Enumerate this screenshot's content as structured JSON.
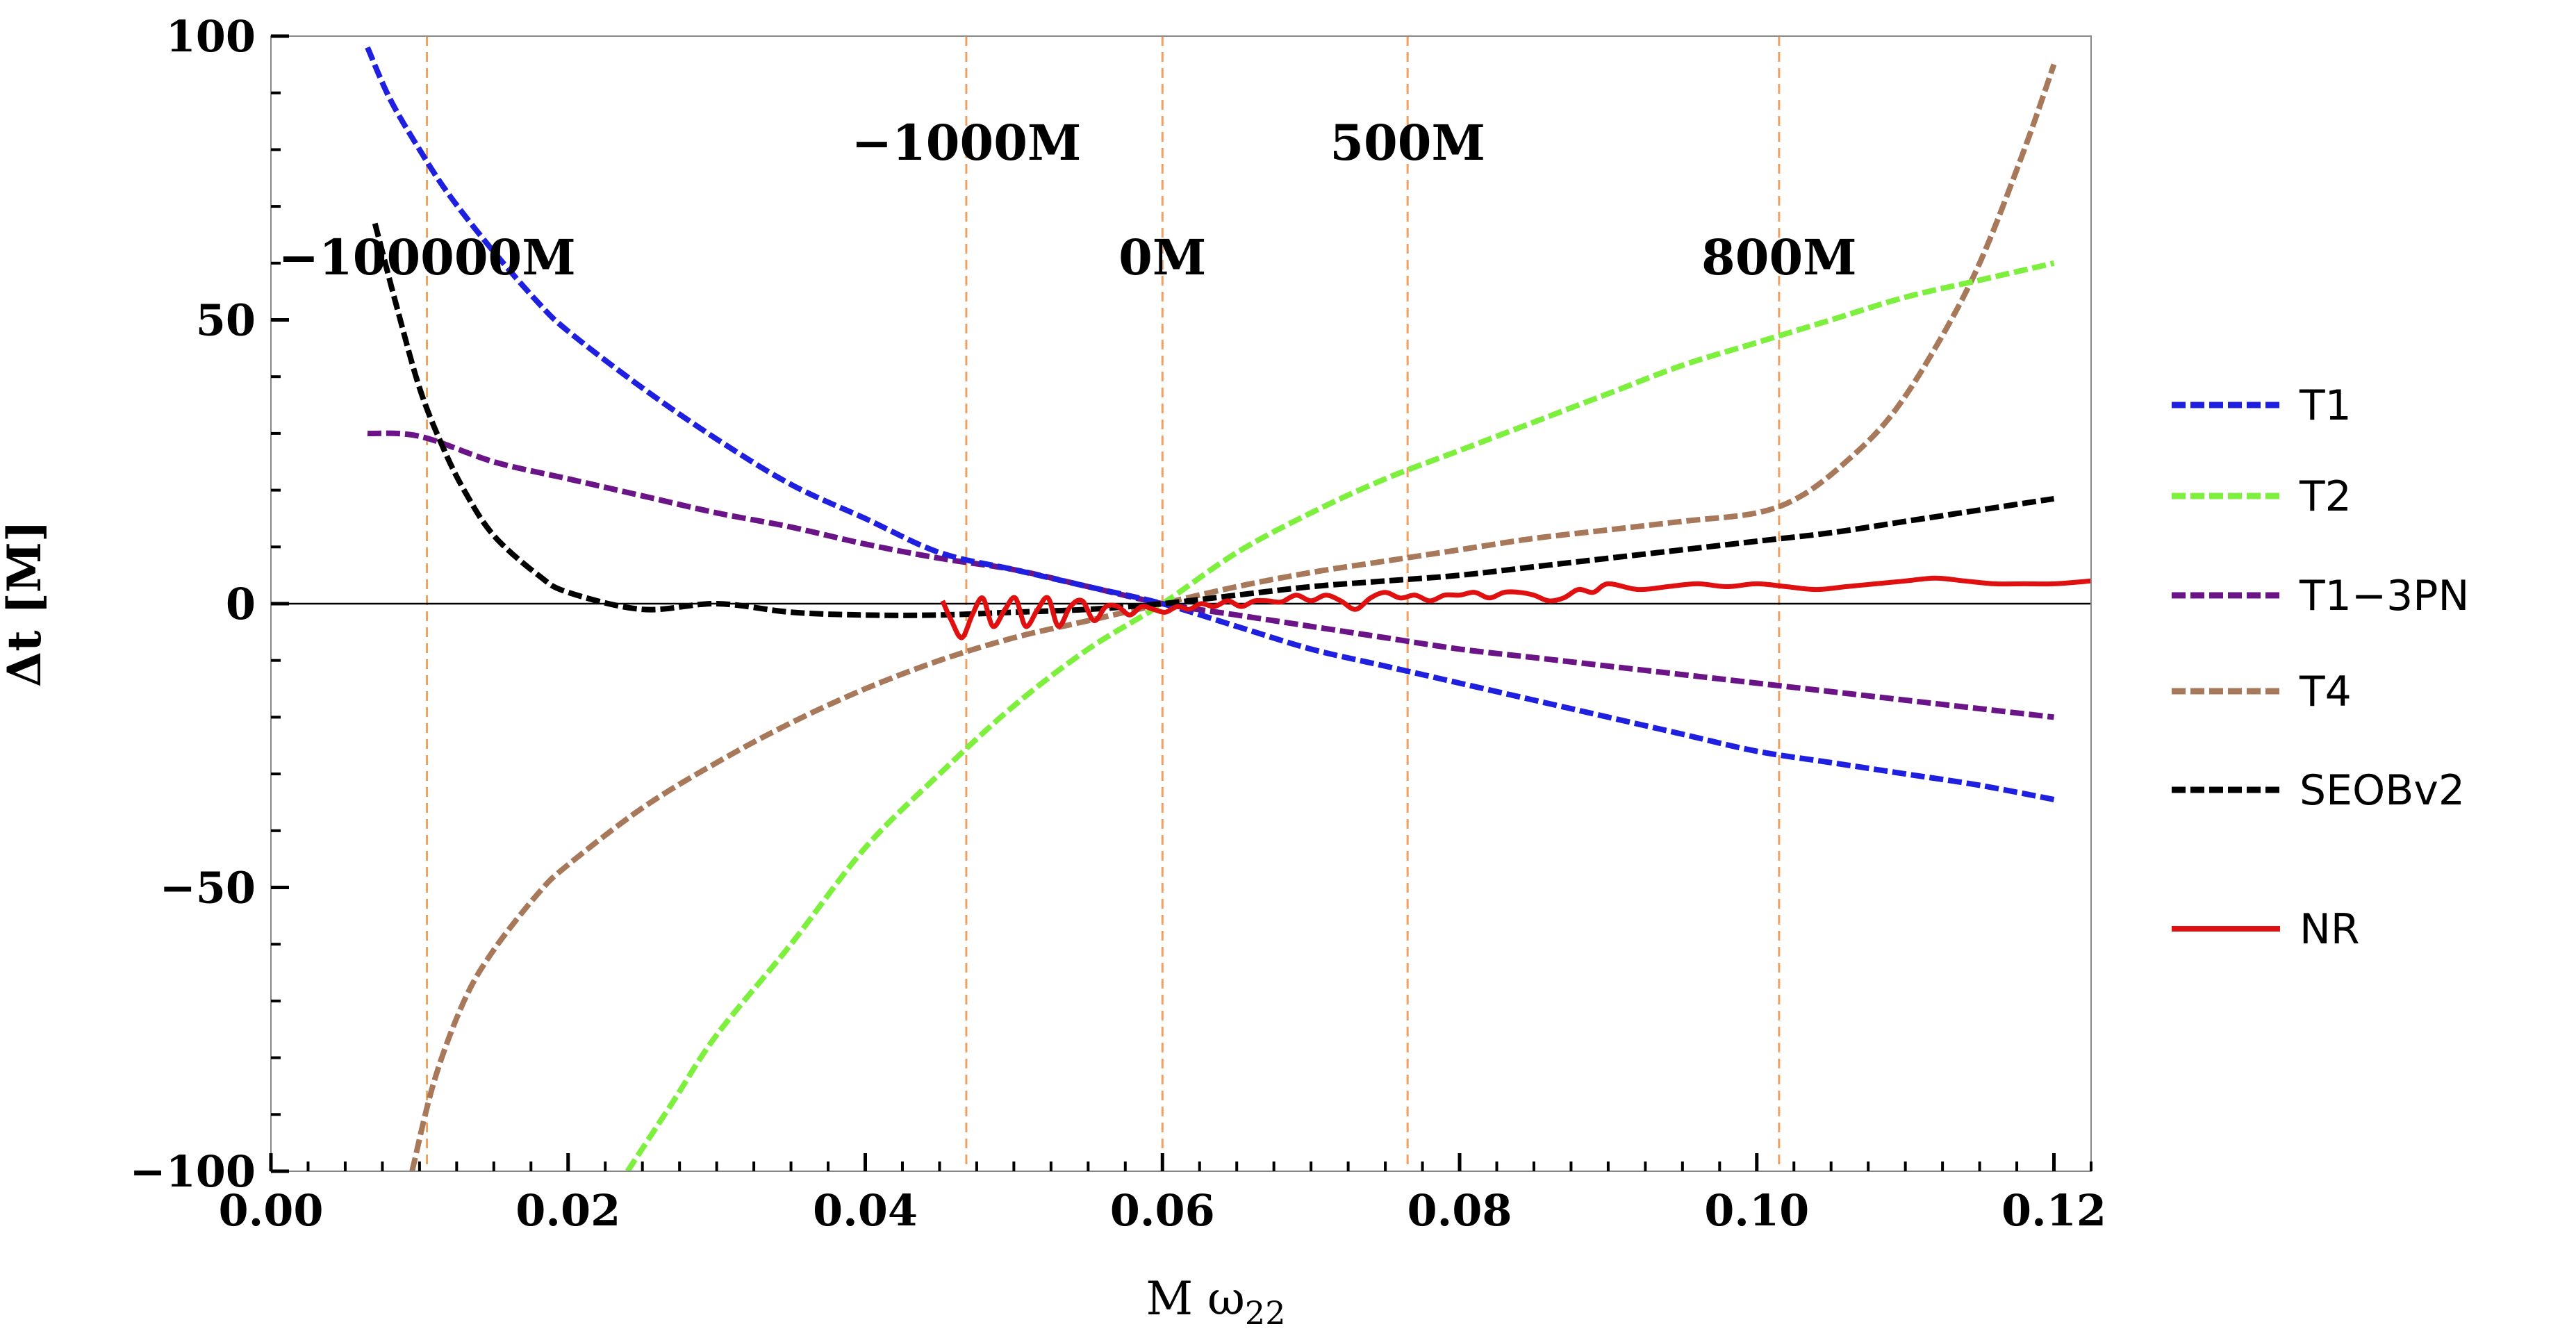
{
  "chart_data": {
    "type": "line",
    "title": "",
    "xlabel": "M ω",
    "xlabel_sub": "22",
    "ylabel": "Δt [M]",
    "xlim": [
      0.0,
      0.1225
    ],
    "ylim": [
      -100,
      100
    ],
    "xticks": [
      0.0,
      0.02,
      0.04,
      0.06,
      0.08,
      0.1,
      0.12
    ],
    "xtick_labels": [
      "0.00",
      "0.02",
      "0.04",
      "0.06",
      "0.08",
      "0.10",
      "0.12"
    ],
    "yticks": [
      100,
      50,
      0,
      -50,
      -100
    ],
    "ytick_labels": [
      "100",
      "50",
      "0",
      "−50",
      "−100"
    ],
    "vertical_markers": [
      {
        "x": 0.0105,
        "label": "−100000M",
        "label_level": "low"
      },
      {
        "x": 0.0468,
        "label": "−1000M",
        "label_level": "high"
      },
      {
        "x": 0.06,
        "label": "0M",
        "label_level": "low"
      },
      {
        "x": 0.0765,
        "label": "500M",
        "label_level": "high"
      },
      {
        "x": 0.1015,
        "label": "800M",
        "label_level": "low"
      }
    ],
    "series": [
      {
        "name": "T1",
        "color": "#1f1fe0",
        "style": "dashed",
        "x": [
          0.0065,
          0.008,
          0.01,
          0.012,
          0.015,
          0.018,
          0.02,
          0.025,
          0.03,
          0.035,
          0.04,
          0.045,
          0.05,
          0.055,
          0.06,
          0.065,
          0.07,
          0.075,
          0.08,
          0.085,
          0.09,
          0.095,
          0.1,
          0.105,
          0.11,
          0.115,
          0.12
        ],
        "y": [
          98,
          89,
          80,
          72,
          62,
          53,
          48,
          38,
          29,
          21,
          15,
          9,
          6,
          3,
          0,
          -4,
          -8,
          -11,
          -14,
          -17,
          -20,
          -23,
          -26,
          -28,
          -30,
          -32,
          -34.5
        ]
      },
      {
        "name": "T2",
        "color": "#7cf03c",
        "style": "dashed",
        "x": [
          0.024,
          0.027,
          0.03,
          0.035,
          0.04,
          0.045,
          0.05,
          0.055,
          0.06,
          0.065,
          0.07,
          0.075,
          0.08,
          0.085,
          0.09,
          0.095,
          0.1,
          0.105,
          0.11,
          0.115,
          0.12
        ],
        "y": [
          -100,
          -88,
          -76,
          -60,
          -43,
          -30,
          -18,
          -8,
          0,
          9,
          16,
          22,
          27,
          32,
          37,
          42,
          46,
          50,
          54,
          57,
          60
        ]
      },
      {
        "name": "T1−3PN",
        "color": "#6a1488",
        "style": "dashed",
        "x": [
          0.0065,
          0.01,
          0.015,
          0.02,
          0.025,
          0.03,
          0.035,
          0.04,
          0.045,
          0.05,
          0.055,
          0.06,
          0.065,
          0.07,
          0.075,
          0.08,
          0.085,
          0.09,
          0.095,
          0.1,
          0.105,
          0.11,
          0.115,
          0.12
        ],
        "y": [
          30,
          29.5,
          25,
          22,
          19,
          16,
          13.5,
          10.5,
          8,
          6,
          3,
          0,
          -2,
          -4,
          -6,
          -8,
          -9.5,
          -11,
          -12.5,
          -14,
          -15.5,
          -17,
          -18.5,
          -20
        ]
      },
      {
        "name": "T4",
        "color": "#a8785a",
        "style": "dashed",
        "x": [
          0.0095,
          0.011,
          0.013,
          0.015,
          0.018,
          0.02,
          0.025,
          0.03,
          0.035,
          0.04,
          0.045,
          0.05,
          0.055,
          0.06,
          0.065,
          0.07,
          0.075,
          0.08,
          0.085,
          0.09,
          0.095,
          0.1,
          0.103,
          0.106,
          0.109,
          0.112,
          0.115,
          0.118,
          0.12
        ],
        "y": [
          -100,
          -84,
          -70,
          -61,
          -51,
          -46,
          -36,
          -28,
          -21,
          -15,
          -10,
          -6,
          -3,
          0,
          3,
          5.5,
          7.5,
          9.5,
          11.5,
          13,
          14.5,
          16,
          19,
          25,
          33,
          45,
          60,
          80,
          95
        ]
      },
      {
        "name": "SEOBv2",
        "color": "#000000",
        "style": "dashed",
        "x": [
          0.007,
          0.0085,
          0.01,
          0.0115,
          0.013,
          0.015,
          0.018,
          0.02,
          0.025,
          0.03,
          0.035,
          0.04,
          0.045,
          0.05,
          0.055,
          0.06,
          0.065,
          0.07,
          0.075,
          0.08,
          0.085,
          0.09,
          0.095,
          0.1,
          0.105,
          0.11,
          0.115,
          0.12
        ],
        "y": [
          67,
          52,
          38,
          28,
          20,
          12,
          5,
          2,
          -1,
          0,
          -1.5,
          -2,
          -2,
          -1.5,
          -1,
          0,
          1.5,
          3,
          4,
          5,
          6.5,
          8,
          9.5,
          11,
          12.5,
          14.5,
          16.5,
          18.5
        ]
      },
      {
        "name": "NR",
        "color": "#e01010",
        "style": "solid",
        "x": [
          0.0452,
          0.0458,
          0.0465,
          0.0472,
          0.0479,
          0.0486,
          0.0494,
          0.0501,
          0.0508,
          0.0516,
          0.0523,
          0.053,
          0.0538,
          0.0546,
          0.0554,
          0.0562,
          0.057,
          0.0578,
          0.0586,
          0.0594,
          0.0602,
          0.061,
          0.0618,
          0.0626,
          0.0635,
          0.0644,
          0.0653,
          0.0662,
          0.0671,
          0.068,
          0.069,
          0.07,
          0.071,
          0.072,
          0.073,
          0.074,
          0.075,
          0.076,
          0.077,
          0.078,
          0.079,
          0.08,
          0.081,
          0.082,
          0.083,
          0.084,
          0.085,
          0.086,
          0.087,
          0.088,
          0.089,
          0.09,
          0.092,
          0.094,
          0.096,
          0.098,
          0.1,
          0.102,
          0.104,
          0.106,
          0.108,
          0.11,
          0.112,
          0.114,
          0.116,
          0.118,
          0.12,
          0.1225
        ],
        "y": [
          0.5,
          -3,
          -6,
          -2,
          1,
          -4,
          -1,
          1,
          -4,
          -1,
          1,
          -4,
          -0.5,
          0.5,
          -3,
          -0.5,
          -0.5,
          -2,
          -0.5,
          -1,
          -1.5,
          -0.5,
          -1,
          0,
          -0.5,
          0.5,
          -0.5,
          0.5,
          0.5,
          0.3,
          1.5,
          0.5,
          1.5,
          0.5,
          -1,
          1,
          2,
          1,
          1.5,
          0.5,
          1.5,
          1.5,
          2,
          1,
          2,
          2,
          1.5,
          0.5,
          1,
          2.5,
          2,
          3.5,
          2.5,
          3,
          3.5,
          3,
          3.5,
          3,
          2.5,
          3,
          3.5,
          4,
          4.5,
          4,
          3.5,
          3.5,
          3.5,
          4
        ]
      }
    ],
    "legend": [
      "T1",
      "T2",
      "T1−3PN",
      "T4",
      "SEOBv2",
      "NR"
    ],
    "legend_position": "right",
    "grid": false
  }
}
